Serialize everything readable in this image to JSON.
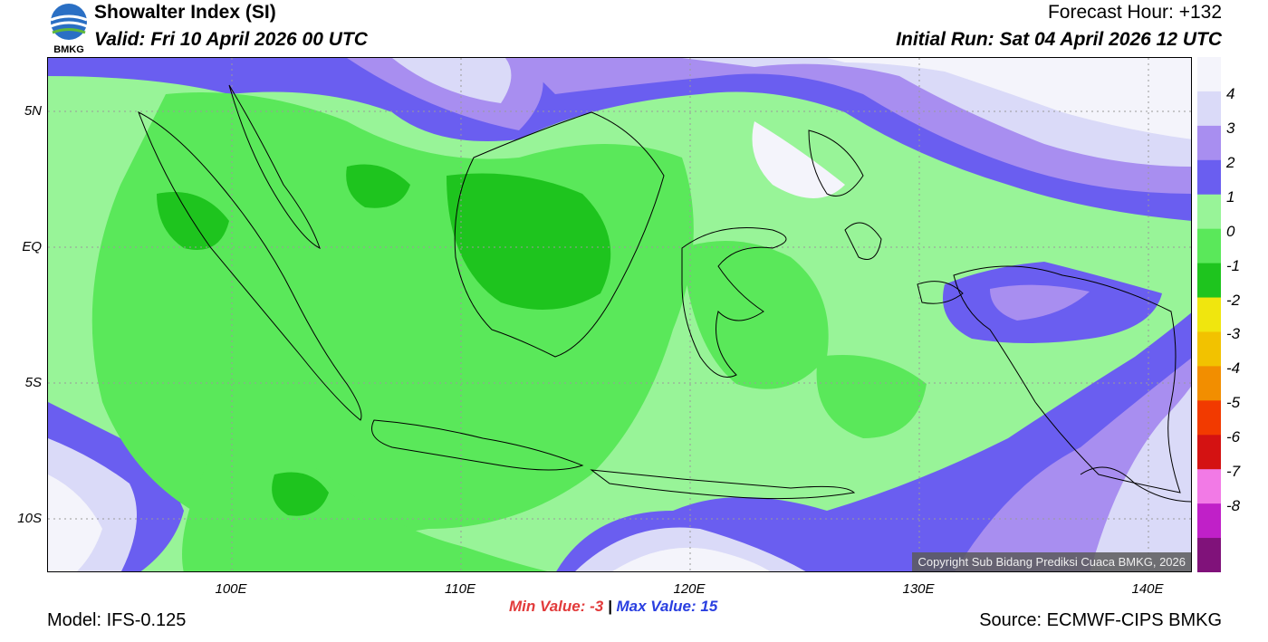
{
  "header": {
    "title": "Showalter Index (SI)",
    "valid": "Valid: Fri 10 April 2026 00 UTC",
    "forecast_hour": "Forecast Hour: +132",
    "initial_run": "Initial Run: Sat 04 April 2026 12 UTC"
  },
  "logo": {
    "text": "BMKG"
  },
  "map": {
    "lat_labels": [
      "5N",
      "EQ",
      "5S",
      "10S"
    ],
    "lon_labels": [
      "100E",
      "110E",
      "120E",
      "130E",
      "140E"
    ],
    "copyright": "Copyright Sub Bidang Prediksi Cuaca BMKG, 2026"
  },
  "colorbar": {
    "labels": [
      "4",
      "3",
      "2",
      "1",
      "0",
      "-1",
      "-2",
      "-3",
      "-4",
      "-5",
      "-6",
      "-7",
      "-8"
    ],
    "colors": [
      "#f4f4fb",
      "#dadaf8",
      "#a88ef0",
      "#6a5ef0",
      "#98f498",
      "#5ae85a",
      "#1ec41e",
      "#f0e60e",
      "#f2c200",
      "#f28e00",
      "#f23a00",
      "#d41212",
      "#f27ae6",
      "#c020c8",
      "#80127a"
    ]
  },
  "footer": {
    "min_label": "Min Value:",
    "min_value": "-3",
    "separator": "|",
    "max_label": "Max Value:",
    "max_value": "15",
    "model": "Model: IFS-0.125",
    "source": "Source: ECMWF-CIPS BMKG"
  }
}
